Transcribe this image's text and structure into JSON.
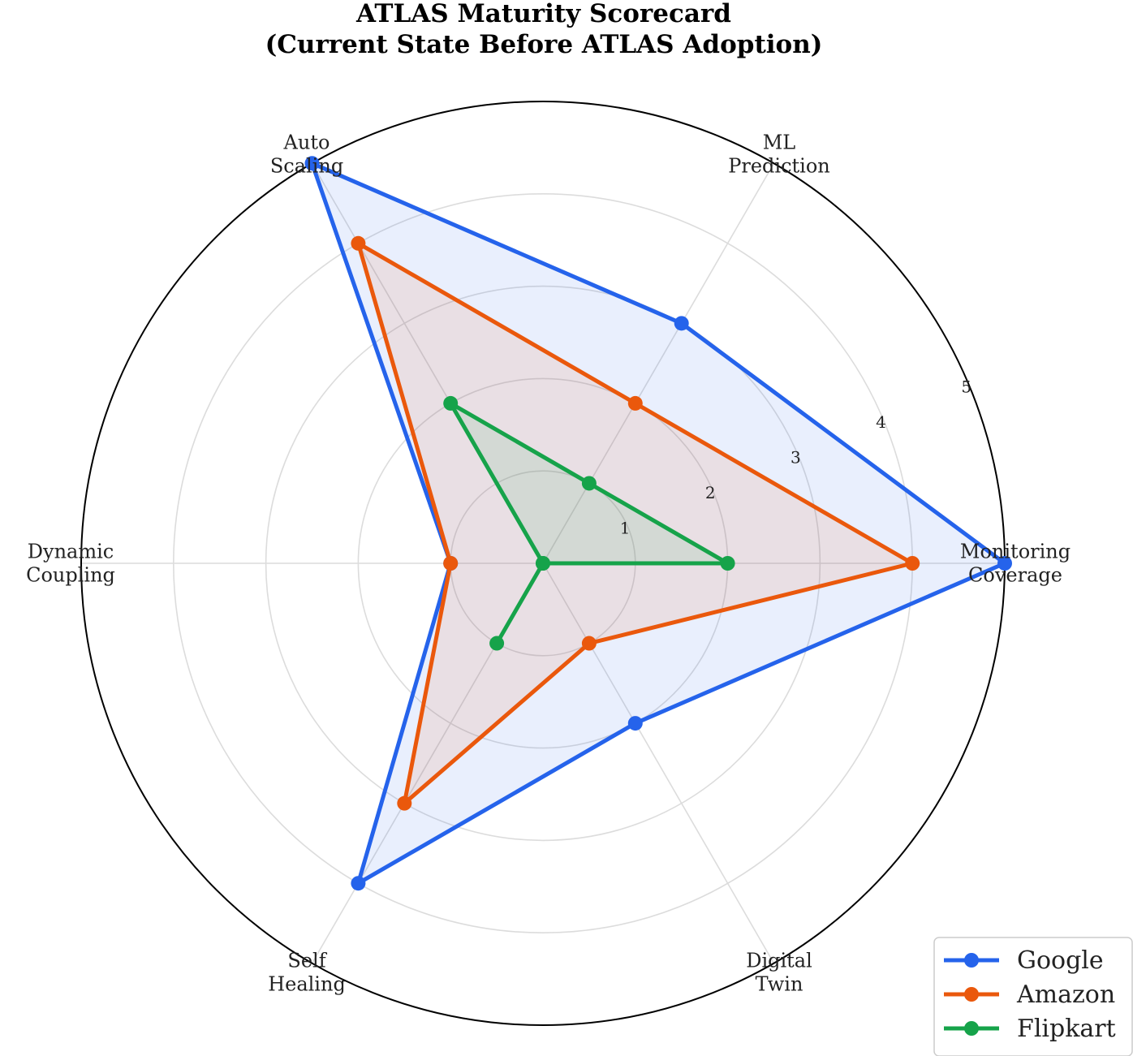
{
  "chart_data": {
    "type": "radar",
    "title": "ATLAS Maturity Scorecard",
    "subtitle": "(Current State Before ATLAS Adoption)",
    "axes": [
      [
        "Monitoring",
        "Coverage"
      ],
      [
        "ML",
        "Prediction"
      ],
      [
        "Auto",
        "Scaling"
      ],
      [
        "Dynamic",
        "Coupling"
      ],
      [
        "Self",
        "Healing"
      ],
      [
        "Digital",
        "Twin"
      ]
    ],
    "rlim": [
      0,
      5
    ],
    "rticks": [
      "1",
      "2",
      "3",
      "4",
      "5"
    ],
    "grid": true,
    "legend_position": "bottom-right",
    "series": [
      {
        "name": "Google",
        "color": "#2563eb",
        "values": [
          5,
          3,
          5,
          1,
          4,
          2
        ]
      },
      {
        "name": "Amazon",
        "color": "#ea580c",
        "values": [
          4,
          2,
          4,
          1,
          3,
          1
        ]
      },
      {
        "name": "Flipkart",
        "color": "#16a34a",
        "values": [
          2,
          1,
          2,
          0,
          1,
          0
        ]
      }
    ]
  }
}
